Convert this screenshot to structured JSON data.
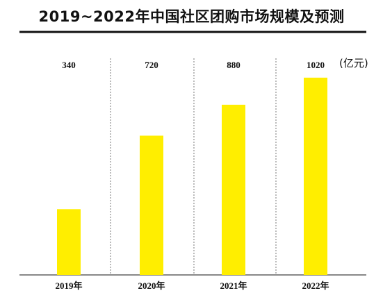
{
  "chart_data": {
    "type": "bar",
    "title": "2019~2022年中国社区团购市场规模及预测",
    "unit": "(亿元)",
    "categories": [
      "2019年",
      "2020年",
      "2021年",
      "2022年"
    ],
    "values": [
      340,
      720,
      880,
      1020
    ],
    "ylim": [
      0,
      1120
    ],
    "bar_color": "#ffee00",
    "grid": "vertical dashed separators",
    "legend": "none"
  }
}
